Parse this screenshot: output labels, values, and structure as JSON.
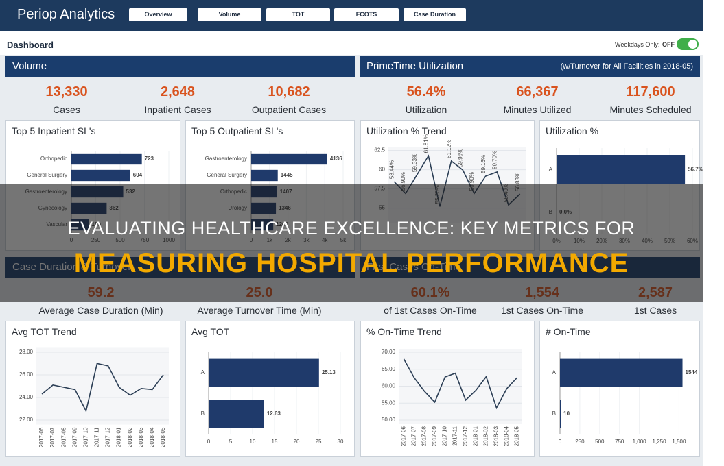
{
  "header": {
    "title": "Periop Analytics",
    "nav": [
      "Overview",
      "Volume",
      "TOT",
      "FCOTS",
      "Case Duration"
    ]
  },
  "toolbar": {
    "title": "Dashboard",
    "toggle_label": "Weekdays Only:",
    "toggle_state": "OFF"
  },
  "sections": [
    {
      "title": "Volume",
      "kpis": [
        {
          "value": "13,330",
          "label": "Cases"
        },
        {
          "value": "2,648",
          "label": "Inpatient Cases"
        },
        {
          "value": "10,682",
          "label": "Outpatient Cases"
        }
      ],
      "charts": [
        {
          "type": "hbar",
          "title": "Top 5 Inpatient SL's",
          "categories": [
            "Orthopedic",
            "General Surgery",
            "Gastroenterology",
            "Gynecology",
            "Vascular"
          ],
          "values": [
            723,
            604,
            532,
            362,
            180
          ],
          "xlim": [
            0,
            1000
          ],
          "xticks": [
            0,
            250,
            500,
            750,
            1000
          ]
        },
        {
          "type": "hbar",
          "title": "Top 5 Outpatient SL's",
          "categories": [
            "Gastroenterology",
            "General Surgery",
            "Orthopedic",
            "Urology",
            null
          ],
          "values": [
            4136,
            1445,
            1407,
            1346,
            1200
          ],
          "xlim": [
            0,
            5000
          ],
          "xticks": [
            0,
            {
              "value": 1000,
              "label": "1k"
            },
            {
              "value": 2000,
              "label": "2k"
            },
            {
              "value": 3000,
              "label": "3k"
            },
            {
              "value": 4000,
              "label": "4k"
            },
            {
              "value": 5000,
              "label": "5k"
            }
          ]
        }
      ]
    },
    {
      "title": "PrimeTime Utilization",
      "note": "(w/Turnover for All Facilities in 2018-05)",
      "kpis": [
        {
          "value": "56.4%",
          "label": "Utilization"
        },
        {
          "value": "66,367",
          "label": "Minutes Utilized"
        },
        {
          "value": "117,600",
          "label": "Minutes Scheduled"
        }
      ],
      "charts": [
        {
          "type": "line",
          "title": "Utilization % Trend",
          "values": [
            58.44,
            56.9,
            59.33,
            61.81,
            55.2,
            61.12,
            59.96,
            56.9,
            59.16,
            59.7,
            55.4,
            56.83
          ],
          "value_labels": [
            "58.44%",
            "56.90%",
            "59.33%",
            "61.81%",
            "55.20%",
            "61.12%",
            "59.96%",
            "56.90%",
            "59.16%",
            "59.70%",
            "55.40%",
            "56.83%"
          ],
          "ylim": [
            53,
            63
          ],
          "yticks": [
            55,
            57.5,
            60,
            62.5
          ]
        },
        {
          "type": "hbar",
          "title": "Utilization %",
          "categories": [
            "A",
            "B"
          ],
          "values": [
            56.7,
            0
          ],
          "value_labels": [
            "56.7%",
            "0.0%"
          ],
          "xlim": [
            0,
            60
          ],
          "xticks": [
            {
              "value": 0,
              "label": "0%"
            },
            {
              "value": 10,
              "label": "10%"
            },
            {
              "value": 20,
              "label": "20%"
            },
            {
              "value": 30,
              "label": "30%"
            },
            {
              "value": 40,
              "label": "40%"
            },
            {
              "value": 50,
              "label": "50%"
            },
            {
              "value": 60,
              "label": "60%"
            }
          ]
        }
      ]
    },
    {
      "title": "Case Duration & Turnover",
      "kpis": [
        {
          "value": "59.2",
          "label": "Average Case Duration (Min)"
        },
        {
          "value": "25.0",
          "label": "Average Turnover Time (Min)"
        }
      ],
      "charts": [
        {
          "type": "line",
          "title": "Avg TOT Trend",
          "x": [
            "2017-06",
            "2017-07",
            "2017-08",
            "2017-09",
            "2017-10",
            "2017-11",
            "2017-12",
            "2018-01",
            "2018-02",
            "2018-03",
            "2018-04",
            "2018-05"
          ],
          "values": [
            24.3,
            25.1,
            24.9,
            24.7,
            22.8,
            27.0,
            26.8,
            24.9,
            24.2,
            24.8,
            24.7,
            26.0
          ],
          "ylim": [
            21.6,
            28.4
          ],
          "yticks": [
            {
              "value": 22,
              "label": "22.00"
            },
            {
              "value": 24,
              "label": "24.00"
            },
            {
              "value": 26,
              "label": "26.00"
            },
            {
              "value": 28,
              "label": "28.00"
            }
          ]
        },
        {
          "type": "hbar",
          "title": "Avg TOT",
          "categories": [
            "A",
            "B"
          ],
          "values": [
            25.13,
            12.63
          ],
          "xlim": [
            0,
            30
          ],
          "xticks": [
            0,
            5,
            10,
            15,
            20,
            25,
            30
          ]
        }
      ]
    },
    {
      "title": "First Cases On-Time",
      "kpis": [
        {
          "value": "60.1%",
          "label": "of 1st Cases On-Time"
        },
        {
          "value": "1,554",
          "label": "1st Cases On-Time"
        },
        {
          "value": "2,587",
          "label": "1st Cases"
        }
      ],
      "charts": [
        {
          "type": "line",
          "title": "% On-Time Trend",
          "x": [
            "2017-06",
            "2017-07",
            "2017-08",
            "2017-09",
            "2017-10",
            "2017-11",
            "2017-12",
            "2018-01",
            "2018-02",
            "2018-03",
            "2018-04",
            "2018-05"
          ],
          "values": [
            68.0,
            62.5,
            58.5,
            55.3,
            62.7,
            63.8,
            55.9,
            58.8,
            62.8,
            53.6,
            59.3,
            62.5
          ],
          "ylim": [
            49,
            71
          ],
          "yticks": [
            {
              "value": 50,
              "label": "50.00"
            },
            {
              "value": 55,
              "label": "55.00"
            },
            {
              "value": 60,
              "label": "60.00"
            },
            {
              "value": 65,
              "label": "65.00"
            },
            {
              "value": 70,
              "label": "70.00"
            }
          ]
        },
        {
          "type": "hbar",
          "title": "# On-Time",
          "categories": [
            "A",
            "B"
          ],
          "values": [
            1544,
            10
          ],
          "xlim": [
            0,
            1600
          ],
          "xticks": [
            0,
            250,
            500,
            750,
            {
              "value": 1000,
              "label": "1,000"
            },
            {
              "value": 1250,
              "label": "1,250"
            },
            {
              "value": 1500,
              "label": "1,500"
            }
          ]
        }
      ]
    }
  ],
  "overlay": {
    "line1": "EVALUATING HEALTHCARE EXCELLENCE: KEY METRICS FOR",
    "line2": "MEASURING HOSPITAL PERFORMANCE"
  }
}
